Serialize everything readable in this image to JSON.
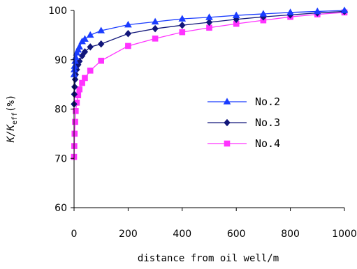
{
  "chart_data": {
    "type": "line",
    "xlabel": "distance from oil well/m",
    "ylabel": "K/K",
    "ylabel_subscript": "eff",
    "ylabel_suffix": "(%)",
    "xlim": [
      0,
      1000
    ],
    "ylim": [
      60,
      100
    ],
    "x_ticks": [
      "0",
      "200",
      "400",
      "600",
      "800",
      "1000"
    ],
    "y_ticks": [
      "60",
      "70",
      "80",
      "90",
      "100"
    ],
    "grid": false,
    "legend_position": "center-right",
    "series": [
      {
        "name": "No.2",
        "marker": "triangle",
        "color": "#1a3cff",
        "x": [
          0,
          1,
          2,
          4,
          6,
          10,
          15,
          20,
          30,
          40,
          60,
          100,
          200,
          300,
          400,
          500,
          600,
          700,
          800,
          900,
          1000
        ],
        "y": [
          87.0,
          88.0,
          88.7,
          89.7,
          90.5,
          91.4,
          92.0,
          92.6,
          93.7,
          94.2,
          95.0,
          95.9,
          97.1,
          97.7,
          98.3,
          98.6,
          99.0,
          99.3,
          99.6,
          99.8,
          100.0
        ]
      },
      {
        "name": "No.3",
        "marker": "diamond",
        "color": "#11167a",
        "x": [
          0,
          1,
          2,
          4,
          6,
          10,
          15,
          20,
          30,
          40,
          60,
          100,
          200,
          300,
          400,
          500,
          600,
          700,
          800,
          900,
          1000
        ],
        "y": [
          81.0,
          83.0,
          84.5,
          86.0,
          87.0,
          88.0,
          89.0,
          89.7,
          90.8,
          91.6,
          92.6,
          93.2,
          95.3,
          96.3,
          97.0,
          97.6,
          98.2,
          98.7,
          99.1,
          99.5,
          99.8
        ]
      },
      {
        "name": "No.4",
        "marker": "square",
        "color": "#ff33ff",
        "x": [
          0,
          1,
          2,
          4,
          6,
          10,
          15,
          20,
          30,
          40,
          60,
          100,
          200,
          300,
          400,
          500,
          600,
          700,
          800,
          900,
          1000
        ],
        "y": [
          70.3,
          72.5,
          75.0,
          77.4,
          79.6,
          81.3,
          82.8,
          84.0,
          85.3,
          86.3,
          87.8,
          89.8,
          92.8,
          94.3,
          95.6,
          96.5,
          97.3,
          98.0,
          98.7,
          99.2,
          99.6
        ]
      }
    ]
  }
}
